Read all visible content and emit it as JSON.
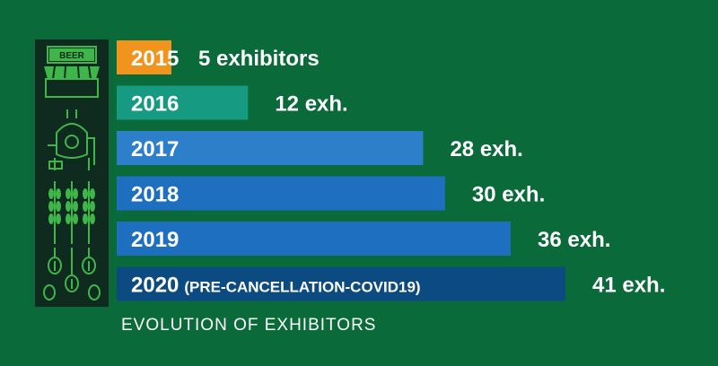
{
  "sidebar": {
    "sign_text": "BEER",
    "icons": [
      "beer-shop-icon",
      "brewing-kettle-icon",
      "wheat-icon",
      "hops-icon"
    ]
  },
  "chart_data": {
    "type": "bar",
    "orientation": "horizontal",
    "categories": [
      "2015",
      "2016",
      "2017",
      "2018",
      "2019",
      "2020"
    ],
    "category_notes": [
      "",
      "",
      "",
      "",
      "",
      "(PRE-CANCELLATION-COVID19)"
    ],
    "values": [
      5,
      12,
      28,
      30,
      36,
      41
    ],
    "value_labels": [
      "5 exhibitors",
      "12 exh.",
      "28 exh.",
      "30 exh.",
      "36 exh.",
      "41 exh."
    ],
    "colors": [
      "#f0941e",
      "#169a82",
      "#2e7fc9",
      "#1f6fc0",
      "#1f6fc0",
      "#0c4a82"
    ],
    "title": "",
    "xlabel": "",
    "ylabel": "",
    "grid": false,
    "legend": "none",
    "caption": "EVOLUTION OF EXHIBITORS"
  }
}
